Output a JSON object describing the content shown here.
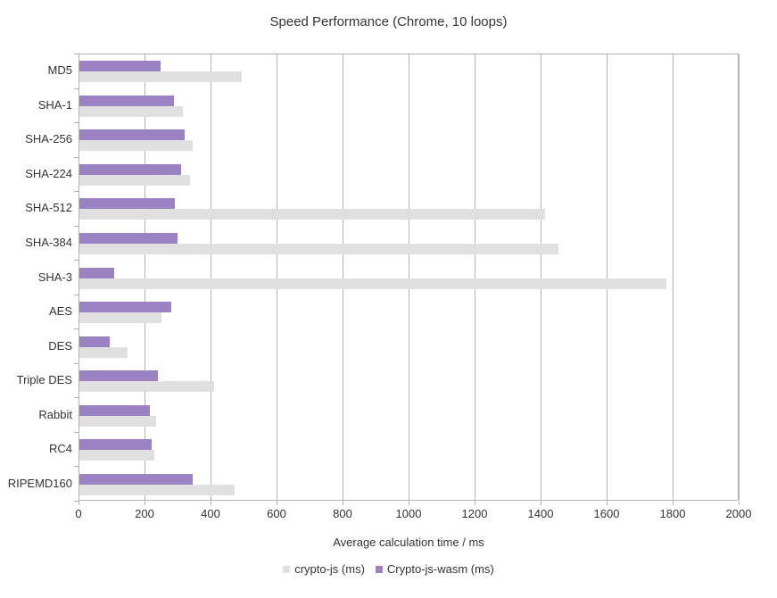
{
  "title": "Speed Performance (Chrome, 10 loops)",
  "xlabel": "Average calculation time / ms",
  "colors": {
    "crypto_js": "#e0e0e0",
    "crypto_js_wasm": "#9b82c2",
    "axis_line": "#b3b3b3",
    "text": "#333333"
  },
  "chart_data": {
    "type": "bar",
    "orientation": "horizontal",
    "title": "Speed Performance (Chrome, 10 loops)",
    "xlabel": "Average calculation time / ms",
    "ylabel": "",
    "xlim": [
      0,
      2000
    ],
    "xticks": [
      0,
      200,
      400,
      600,
      800,
      1000,
      1200,
      1400,
      1600,
      1800,
      2000
    ],
    "grid": true,
    "legend_position": "bottom",
    "categories": [
      "MD5",
      "SHA-1",
      "SHA-256",
      "SHA-224",
      "SHA-512",
      "SHA-384",
      "SHA-3",
      "AES",
      "DES",
      "Triple DES",
      "Rabbit",
      "RC4",
      "RIPEMD160"
    ],
    "series": [
      {
        "name": "crypto-js (ms)",
        "color": "#e0e0e0",
        "values": [
          492,
          314,
          343,
          335,
          1411,
          1451,
          1777,
          248,
          147,
          407,
          233,
          227,
          471
        ]
      },
      {
        "name": "Crypto-js-wasm (ms)",
        "color": "#9b82c2",
        "values": [
          246,
          287,
          318,
          309,
          288,
          298,
          105,
          277,
          92,
          238,
          213,
          218,
          344
        ]
      }
    ]
  }
}
